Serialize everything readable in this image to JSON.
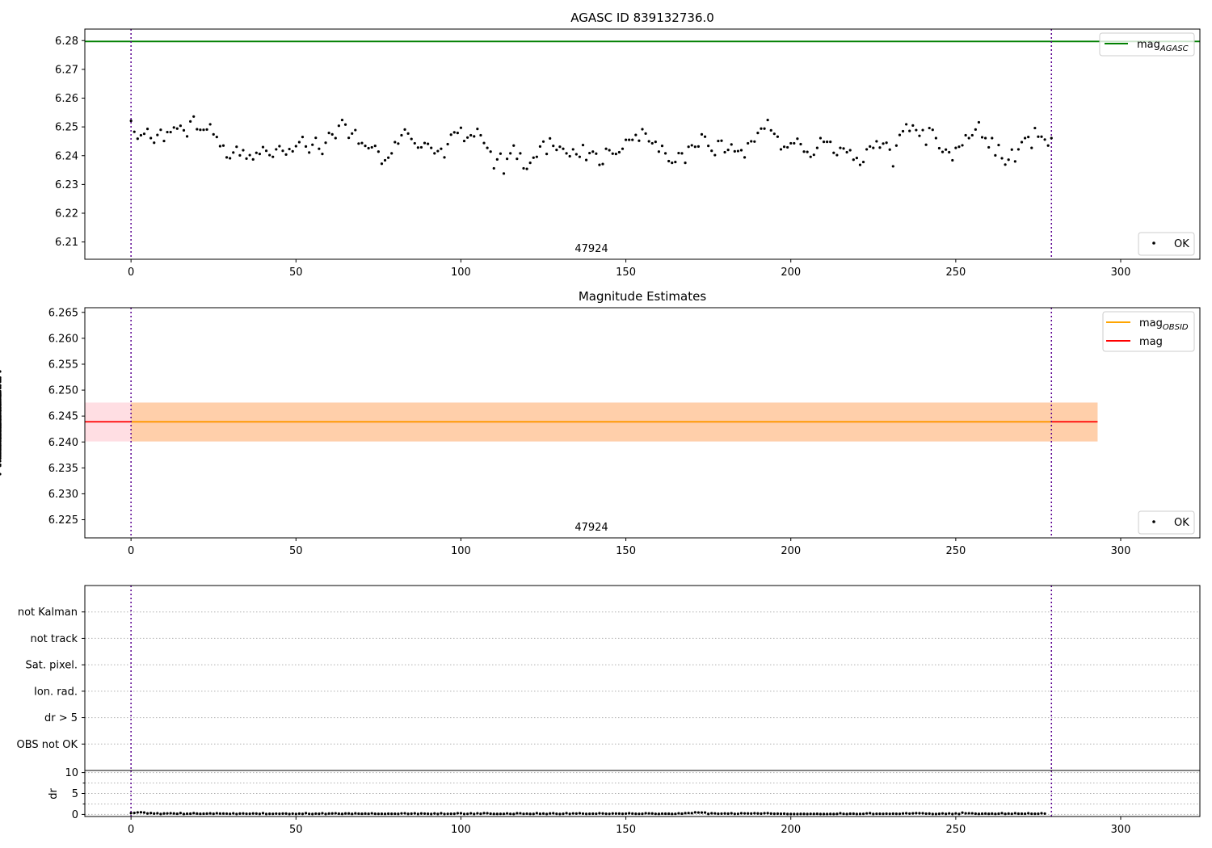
{
  "chart_data": [
    {
      "type": "scatter",
      "title": "AGASC ID 839132736.0",
      "xlim": [
        -14,
        324
      ],
      "ylim": [
        6.204,
        6.284
      ],
      "xticks": [
        0,
        50,
        100,
        150,
        200,
        250,
        300
      ],
      "yticks": [
        6.21,
        6.22,
        6.23,
        6.24,
        6.25,
        6.26,
        6.27,
        6.28
      ],
      "ytick_labels": [
        "6.21",
        "6.22",
        "6.23",
        "6.24",
        "6.25",
        "6.26",
        "6.27",
        "6.28"
      ],
      "obsid_label": "47924",
      "obsid_label_x": 140,
      "vlines": [
        0,
        279
      ],
      "hlines": [
        {
          "name": "mag",
          "sub": "AGASC",
          "y": 6.2797,
          "x0": -14,
          "x1": 324,
          "color": "#008000"
        }
      ],
      "legends": [
        {
          "position": "top-right",
          "items": [
            {
              "kind": "line",
              "color": "#008000",
              "label": "mag",
              "sub": "AGASC"
            }
          ]
        },
        {
          "position": "bottom-right",
          "items": [
            {
              "kind": "dot",
              "color": "#000000",
              "label": "OK"
            }
          ]
        }
      ],
      "series": [
        {
          "name": "OK",
          "color": "#000000",
          "x_start": 0,
          "x_step": 1,
          "y": [
            6.2521,
            6.2483,
            6.2459,
            6.2471,
            6.2476,
            6.2493,
            6.2461,
            6.2445,
            6.2472,
            6.249,
            6.2451,
            6.2482,
            6.2482,
            6.2498,
            6.2494,
            6.2504,
            6.2488,
            6.2467,
            6.2519,
            6.2536,
            6.2492,
            6.249,
            6.249,
            6.2491,
            6.2509,
            6.2474,
            6.2465,
            6.2433,
            6.2435,
            6.2394,
            6.2391,
            6.2411,
            6.2431,
            6.2401,
            6.2419,
            6.239,
            6.2402,
            6.2387,
            6.241,
            6.2406,
            6.243,
            6.2417,
            6.2402,
            6.2396,
            6.2422,
            6.2433,
            6.2417,
            6.2404,
            6.2423,
            6.2415,
            6.2433,
            6.2447,
            6.2465,
            6.2432,
            6.2411,
            6.2438,
            6.2462,
            6.2424,
            6.2406,
            6.2445,
            6.2479,
            6.2474,
            6.2461,
            6.2504,
            6.2524,
            6.2508,
            6.2462,
            6.2477,
            6.2489,
            6.2442,
            6.2444,
            6.2434,
            6.2426,
            6.2429,
            6.2434,
            6.2414,
            6.2372,
            6.2384,
            6.2393,
            6.2408,
            6.2447,
            6.2442,
            6.2471,
            6.2491,
            6.2477,
            6.2458,
            6.2443,
            6.2428,
            6.2429,
            6.2444,
            6.2441,
            6.2427,
            6.2408,
            6.2416,
            6.2424,
            6.2394,
            6.244,
            6.2473,
            6.2481,
            6.2479,
            6.2497,
            6.2451,
            6.2463,
            6.2471,
            6.2467,
            6.2493,
            6.2471,
            6.2444,
            6.2427,
            6.2414,
            6.2356,
            6.2387,
            6.2407,
            6.2338,
            6.2389,
            6.2408,
            6.2435,
            6.2389,
            6.2408,
            6.2356,
            6.2354,
            6.2375,
            6.2393,
            6.2396,
            6.2432,
            6.2449,
            6.2406,
            6.246,
            6.2434,
            6.242,
            6.2431,
            6.2424,
            6.2408,
            6.2398,
            6.2422,
            6.2405,
            6.2396,
            6.2437,
            6.2385,
            6.2409,
            6.2414,
            6.2407,
            6.2368,
            6.2371,
            6.2424,
            6.2419,
            6.2407,
            6.2406,
            6.2412,
            6.2424,
            6.2455,
            6.2455,
            6.2455,
            6.2472,
            6.2452,
            6.2492,
            6.2477,
            6.245,
            6.2443,
            6.2448,
            6.2414,
            6.2434,
            6.2408,
            6.2381,
            6.2375,
            6.2378,
            6.2409,
            6.2408,
            6.2375,
            6.2431,
            6.2436,
            6.2431,
            6.2432,
            6.2474,
            6.2466,
            6.2434,
            6.2417,
            6.2402,
            6.2451,
            6.2452,
            6.2412,
            6.242,
            6.2439,
            6.2415,
            6.2416,
            6.2419,
            6.2394,
            6.2443,
            6.245,
            6.2449,
            6.2479,
            6.2494,
            6.2494,
            6.2524,
            6.2488,
            6.2476,
            6.2466,
            6.2422,
            6.2431,
            6.2429,
            6.2443,
            6.2443,
            6.2459,
            6.244,
            6.2414,
            6.2413,
            6.2396,
            6.2403,
            6.2427,
            6.2461,
            6.2448,
            6.2448,
            6.2448,
            6.241,
            6.2402,
            6.2427,
            6.2425,
            6.2412,
            6.2419,
            6.2386,
            6.2392,
            6.2368,
            6.2378,
            6.2422,
            6.2432,
            6.2427,
            6.245,
            6.2428,
            6.2442,
            6.2445,
            6.2421,
            6.2363,
            6.2435,
            6.2472,
            6.2485,
            6.2509,
            6.2486,
            6.2505,
            6.2489,
            6.2469,
            6.2489,
            6.2438,
            6.2496,
            6.249,
            6.2461,
            6.2426,
            6.2413,
            6.2421,
            6.2412,
            6.2384,
            6.2427,
            6.2431,
            6.2436,
            6.2471,
            6.2461,
            6.2471,
            6.2491,
            6.2516,
            6.2464,
            6.2461,
            6.2429,
            6.2461,
            6.2401,
            6.2437,
            6.2391,
            6.2369,
            6.2386,
            6.2421,
            6.238,
            6.2422,
            6.2447,
            6.2461,
            6.2465,
            6.2427,
            6.2496,
            6.2466,
            6.2466,
            6.2456,
            6.2435,
            6.2461
          ]
        }
      ]
    },
    {
      "type": "scatter",
      "title": "Magnitude Estimates",
      "xlim": [
        -14,
        324
      ],
      "ylim": [
        6.2215,
        6.2659
      ],
      "xticks": [
        0,
        50,
        100,
        150,
        200,
        250,
        300
      ],
      "yticks": [
        6.225,
        6.23,
        6.235,
        6.24,
        6.245,
        6.25,
        6.255,
        6.26,
        6.265
      ],
      "ytick_labels": [
        "6.225",
        "6.230",
        "6.235",
        "6.240",
        "6.245",
        "6.250",
        "6.255",
        "6.260",
        "6.265"
      ],
      "obsid_label": "47924",
      "obsid_label_x": 140,
      "vlines": [
        0,
        279
      ],
      "bands": [
        {
          "x0": -14,
          "x1": 293,
          "y0": 6.2401,
          "y1": 6.2476,
          "color": "#ffb6c1",
          "alpha": 0.45
        },
        {
          "x0": 0,
          "x1": 293,
          "y0": 6.2401,
          "y1": 6.2476,
          "color": "#ffa500",
          "alpha": 0.25
        }
      ],
      "hlines": [
        {
          "name": "mag",
          "y": 6.2439,
          "x0": -14,
          "x1": 293,
          "color": "#ff0000"
        },
        {
          "name": "mag",
          "sub": "OBSID",
          "y": 6.2439,
          "x0": 0,
          "x1": 279,
          "color": "#ffa500"
        }
      ],
      "legends": [
        {
          "position": "top-right",
          "items": [
            {
              "kind": "line",
              "color": "#ffa500",
              "label": "mag",
              "sub": "OBSID"
            },
            {
              "kind": "line",
              "color": "#ff0000",
              "label": "mag"
            }
          ]
        },
        {
          "position": "bottom-right",
          "items": [
            {
              "kind": "dot",
              "color": "#000000",
              "label": "OK"
            }
          ]
        }
      ],
      "series": [
        {
          "name": "OK",
          "color": "#000000",
          "same_as_chart": 0
        }
      ]
    },
    {
      "type": "scatter",
      "title": "",
      "xlim": [
        -14,
        324
      ],
      "vlines": [
        0,
        279
      ],
      "flags": [
        "not Kalman",
        "not track",
        "Sat. pixel.",
        "Ion. rad.",
        "dr > 5",
        "OBS not OK"
      ],
      "flag_values": {
        "not Kalman": [],
        "not track": [],
        "Sat. pixel.": [],
        "Ion. rad.": [],
        "dr > 5": [],
        "OBS not OK": []
      }
    },
    {
      "type": "scatter",
      "title": "",
      "ylabel": "dr",
      "xlim": [
        -14,
        324
      ],
      "ylim": [
        -0.5,
        10.5
      ],
      "xticks": [
        0,
        50,
        100,
        150,
        200,
        250,
        300
      ],
      "yticks": [
        0,
        5,
        10
      ],
      "ytick_labels": [
        "0",
        "5",
        "10"
      ],
      "minor_yticks": [
        2.5,
        7.5
      ],
      "vlines": [
        0,
        279
      ],
      "series": [
        {
          "name": "dr",
          "color": "#000000",
          "x_start": 0,
          "x_step": 1,
          "y": [
            0.31,
            0.36,
            0.48,
            0.52,
            0.44,
            0.22,
            0.32,
            0.2,
            0.28,
            0.1,
            0.23,
            0.24,
            0.28,
            0.22,
            0.16,
            0.32,
            0.11,
            0.17,
            0.17,
            0.29,
            0.2,
            0.15,
            0.17,
            0.2,
            0.25,
            0.15,
            0.28,
            0.21,
            0.21,
            0.19,
            0.14,
            0.25,
            0.1,
            0.2,
            0.23,
            0.16,
            0.16,
            0.23,
            0.2,
            0.12,
            0.29,
            0.1,
            0.15,
            0.14,
            0.19,
            0.15,
            0.2,
            0.2,
            0.1,
            0.19,
            0.11,
            0.19,
            0.12,
            0.3,
            0.14,
            0.11,
            0.19,
            0.15,
            0.28,
            0.11,
            0.21,
            0.23,
            0.26,
            0.18,
            0.12,
            0.23,
            0.22,
            0.13,
            0.25,
            0.19,
            0.16,
            0.2,
            0.16,
            0.26,
            0.15,
            0.14,
            0.15,
            0.12,
            0.18,
            0.15,
            0.16,
            0.12,
            0.24,
            0.26,
            0.12,
            0.17,
            0.25,
            0.11,
            0.22,
            0.19,
            0.15,
            0.11,
            0.22,
            0.1,
            0.27,
            0.1,
            0.14,
            0.15,
            0.15,
            0.28,
            0.28,
            0.1,
            0.14,
            0.26,
            0.1,
            0.26,
            0.15,
            0.29,
            0.28,
            0.18,
            0.13,
            0.13,
            0.14,
            0.14,
            0.24,
            0.14,
            0.11,
            0.27,
            0.26,
            0.14,
            0.19,
            0.12,
            0.13,
            0.29,
            0.15,
            0.21,
            0.1,
            0.22,
            0.27,
            0.15,
            0.11,
            0.15,
            0.3,
            0.13,
            0.24,
            0.2,
            0.28,
            0.19,
            0.13,
            0.16,
            0.18,
            0.16,
            0.27,
            0.22,
            0.15,
            0.14,
            0.23,
            0.21,
            0.21,
            0.15,
            0.19,
            0.27,
            0.21,
            0.15,
            0.14,
            0.15,
            0.27,
            0.24,
            0.23,
            0.14,
            0.12,
            0.19,
            0.18,
            0.18,
            0.12,
            0.14,
            0.26,
            0.18,
            0.29,
            0.33,
            0.29,
            0.49,
            0.45,
            0.44,
            0.44,
            0.12,
            0.27,
            0.24,
            0.16,
            0.19,
            0.23,
            0.18,
            0.27,
            0.13,
            0.14,
            0.28,
            0.24,
            0.22,
            0.21,
            0.27,
            0.22,
            0.18,
            0.28,
            0.3,
            0.2,
            0.15,
            0.17,
            0.15,
            0.17,
            0.1,
            0.1,
            0.1,
            0.1,
            0.13,
            0.12,
            0.1,
            0.14,
            0.13,
            0.15,
            0.1,
            0.1,
            0.1,
            0.12,
            0.1,
            0.12,
            0.27,
            0.14,
            0.1,
            0.17,
            0.17,
            0.11,
            0.12,
            0.14,
            0.24,
            0.3,
            0.11,
            0.16,
            0.16,
            0.14,
            0.18,
            0.14,
            0.18,
            0.15,
            0.14,
            0.22,
            0.27,
            0.19,
            0.25,
            0.29,
            0.27,
            0.28,
            0.17,
            0.2,
            0.11,
            0.11,
            0.15,
            0.24,
            0.13,
            0.24,
            0.11,
            0.24,
            0.11,
            0.42,
            0.25,
            0.26,
            0.26,
            0.17,
            0.12,
            0.18,
            0.21,
            0.15,
            0.2,
            0.13,
            0.17,
            0.29,
            0.12,
            0.21,
            0.14,
            0.28,
            0.17,
            0.18,
            0.16,
            0.27,
            0.16,
            0.15,
            0.16,
            0.27,
            0.19
          ]
        }
      ]
    }
  ]
}
